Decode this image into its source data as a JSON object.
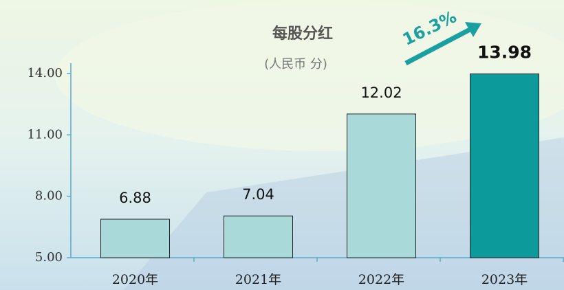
{
  "chart_data": {
    "type": "bar",
    "title": "每股分红",
    "subtitle": "(人民币 分)",
    "annotation": "16.3%",
    "categories": [
      "2020年",
      "2021年",
      "2022年",
      "2023年"
    ],
    "values": [
      6.88,
      7.04,
      12.02,
      13.98
    ],
    "colors": [
      "#a9d9d8",
      "#a9d9d8",
      "#a9d9d8",
      "#0d9a9a"
    ],
    "ylim": [
      5,
      14.5
    ],
    "yticks": [
      {
        "value": 5,
        "label": "5.00"
      },
      {
        "value": 8,
        "label": "8.00"
      },
      {
        "value": 11,
        "label": "11.00"
      },
      {
        "value": 14,
        "label": "14.00"
      }
    ]
  }
}
